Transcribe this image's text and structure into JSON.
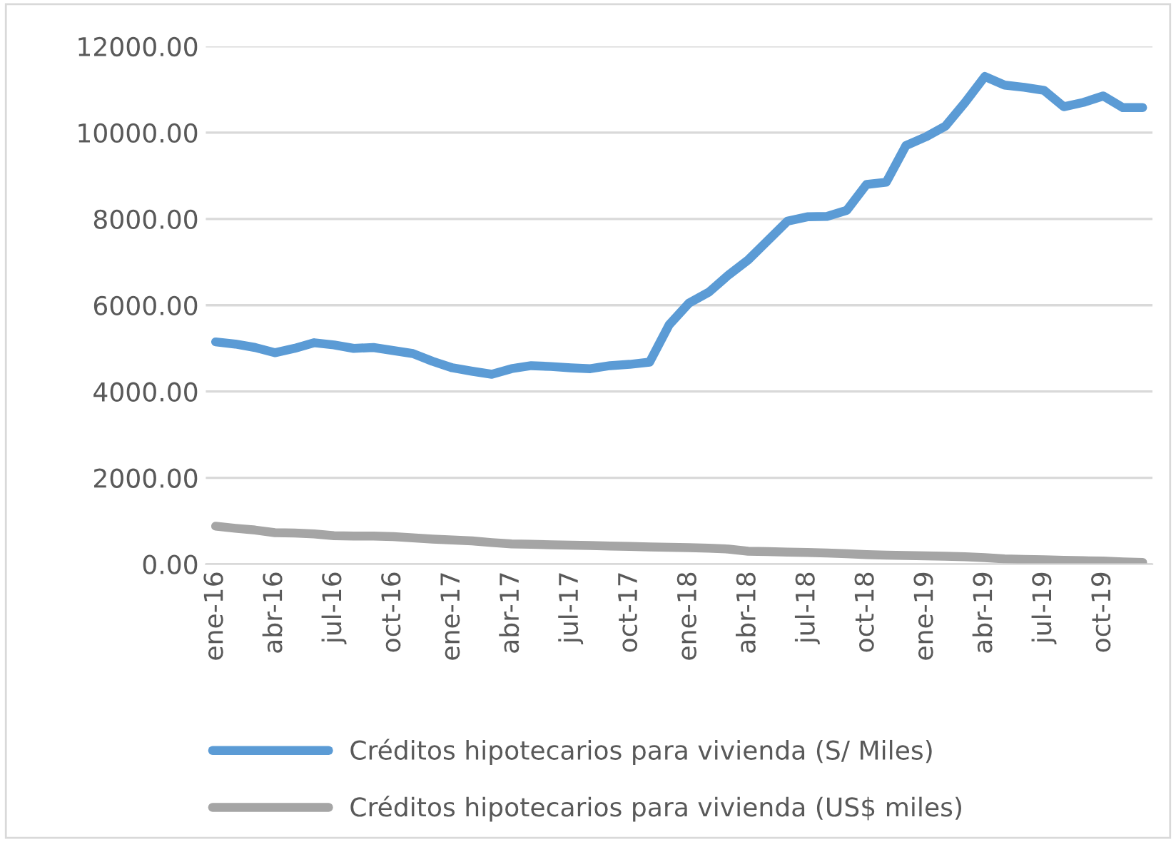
{
  "chart_data": {
    "type": "line",
    "categories": [
      "ene-16",
      null,
      null,
      "abr-16",
      null,
      null,
      "jul-16",
      null,
      null,
      "oct-16",
      null,
      null,
      "ene-17",
      null,
      null,
      "abr-17",
      null,
      null,
      "jul-17",
      null,
      null,
      "oct-17",
      null,
      null,
      "ene-18",
      null,
      null,
      "abr-18",
      null,
      null,
      "jul-18",
      null,
      null,
      "oct-18",
      null,
      null,
      "ene-19",
      null,
      null,
      "abr-19",
      null,
      null,
      "jul-19",
      null,
      null,
      "oct-19",
      null,
      null
    ],
    "series": [
      {
        "name": "Créditos hipotecarios para vivienda (S/ Miles)",
        "color": "#5b9bd5",
        "values": [
          5150,
          5100,
          5020,
          4900,
          5000,
          5130,
          5080,
          5000,
          5020,
          4950,
          4880,
          4700,
          4550,
          4470,
          4400,
          4530,
          4600,
          4580,
          4550,
          4530,
          4600,
          4630,
          4680,
          5550,
          6050,
          6300,
          6700,
          7050,
          7500,
          7950,
          8050,
          8060,
          8200,
          8800,
          8850,
          9700,
          9900,
          10150,
          10700,
          11300,
          11100,
          11050,
          10980,
          10600,
          10700,
          10850,
          10580,
          10580
        ]
      },
      {
        "name": "Créditos hipotecarios para vivienda (US$ miles)",
        "color": "#a5a5a5",
        "values": [
          880,
          830,
          790,
          730,
          720,
          700,
          660,
          650,
          650,
          640,
          610,
          580,
          560,
          540,
          500,
          470,
          460,
          450,
          440,
          430,
          420,
          410,
          400,
          390,
          380,
          370,
          350,
          300,
          290,
          280,
          270,
          260,
          240,
          220,
          210,
          200,
          190,
          185,
          170,
          150,
          120,
          110,
          100,
          90,
          80,
          70,
          50,
          40
        ]
      }
    ],
    "ylim": [
      0,
      12000
    ],
    "yticks": [
      {
        "value": 0,
        "label": "0.00"
      },
      {
        "value": 2000,
        "label": "2000.00"
      },
      {
        "value": 4000,
        "label": "4000.00"
      },
      {
        "value": 6000,
        "label": "6000.00"
      },
      {
        "value": 8000,
        "label": "8000.00"
      },
      {
        "value": 10000,
        "label": "10000.00"
      },
      {
        "value": 12000,
        "label": "12000.00"
      }
    ],
    "grid": "y",
    "legend": "bottom",
    "marker": "none",
    "line_style": "solid"
  }
}
